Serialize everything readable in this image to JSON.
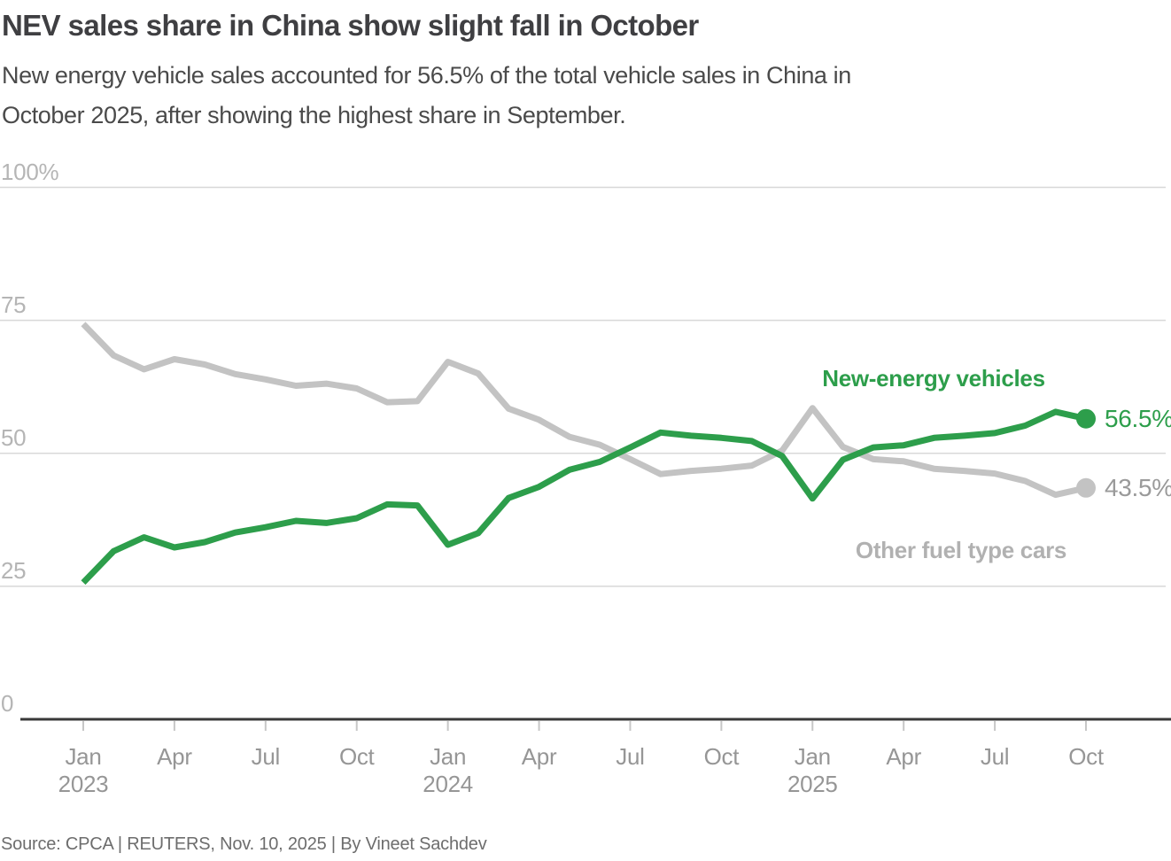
{
  "header": {
    "title": "NEV sales share in China show slight fall in October"
  },
  "footer": {
    "source": "Source: CPCA | REUTERS, Nov. 10, 2025 | By Vineet Sachdev"
  },
  "colors": {
    "nev_green": "#2d9e4b",
    "other_gray": "#c3c3c3",
    "grid": "#d8d8d8",
    "axis": "#383838",
    "tick": "#c7c7c7",
    "x_label": "#969696",
    "y_label": "#b5b5b5",
    "title_text": "#3f3f42",
    "subtitle_text": "#4a4a4a",
    "source_text": "#6d6d6d"
  },
  "chart_data": {
    "type": "line",
    "title": "NEV sales share in China show slight fall in October",
    "subtitle": "New energy vehicle sales accounted for 56.5% of the total vehicle sales in China in October 2025, after showing the highest share in September.",
    "subtitle_lines": [
      "New energy vehicle sales accounted for 56.5% of the total vehicle sales in China in",
      "October 2025, after showing the highest share in September."
    ],
    "x": [
      "2023-01",
      "2023-02",
      "2023-03",
      "2023-04",
      "2023-05",
      "2023-06",
      "2023-07",
      "2023-08",
      "2023-09",
      "2023-10",
      "2023-11",
      "2023-12",
      "2024-01",
      "2024-02",
      "2024-03",
      "2024-04",
      "2024-05",
      "2024-06",
      "2024-07",
      "2024-08",
      "2024-09",
      "2024-10",
      "2024-11",
      "2024-12",
      "2025-01",
      "2025-02",
      "2025-03",
      "2025-04",
      "2025-05",
      "2025-06",
      "2025-07",
      "2025-08",
      "2025-09",
      "2025-10"
    ],
    "series": [
      {
        "name": "New-energy vehicles",
        "color": "#2d9e4b",
        "end_label": "56.5%",
        "values": [
          25.7,
          31.6,
          34.2,
          32.3,
          33.3,
          35.1,
          36.1,
          37.3,
          36.9,
          37.8,
          40.4,
          40.2,
          32.8,
          35.0,
          41.6,
          43.7,
          46.9,
          48.4,
          51.1,
          53.9,
          53.3,
          52.9,
          52.3,
          49.5,
          41.5,
          48.8,
          51.1,
          51.5,
          52.9,
          53.3,
          53.8,
          55.2,
          57.8,
          56.5
        ]
      },
      {
        "name": "Other fuel type cars",
        "color": "#c3c3c3",
        "end_label": "43.5%",
        "values": [
          74.3,
          68.4,
          65.8,
          67.7,
          66.7,
          64.9,
          63.9,
          62.7,
          63.1,
          62.2,
          59.6,
          59.8,
          67.2,
          65.0,
          58.4,
          56.3,
          53.1,
          51.6,
          48.9,
          46.1,
          46.7,
          47.1,
          47.7,
          50.5,
          58.5,
          51.2,
          48.9,
          48.5,
          47.1,
          46.7,
          46.2,
          44.8,
          42.2,
          43.5
        ]
      }
    ],
    "ylim": [
      0,
      100
    ],
    "yticks": [
      {
        "value": 100,
        "label": "100%"
      },
      {
        "value": 75,
        "label": "75"
      },
      {
        "value": 50,
        "label": "50"
      },
      {
        "value": 25,
        "label": "25"
      },
      {
        "value": 0,
        "label": "0"
      }
    ],
    "xticks": [
      {
        "month_index": 0,
        "label": "Jan",
        "year": "2023"
      },
      {
        "month_index": 3,
        "label": "Apr"
      },
      {
        "month_index": 6,
        "label": "Jul"
      },
      {
        "month_index": 9,
        "label": "Oct"
      },
      {
        "month_index": 12,
        "label": "Jan",
        "year": "2024"
      },
      {
        "month_index": 15,
        "label": "Apr"
      },
      {
        "month_index": 18,
        "label": "Jul"
      },
      {
        "month_index": 21,
        "label": "Oct"
      },
      {
        "month_index": 24,
        "label": "Jan",
        "year": "2025"
      },
      {
        "month_index": 27,
        "label": "Apr"
      },
      {
        "month_index": 30,
        "label": "Jul"
      },
      {
        "month_index": 33,
        "label": "Oct"
      }
    ],
    "grid": "horizontal-only",
    "legend": "direct-labels-on-chart"
  }
}
